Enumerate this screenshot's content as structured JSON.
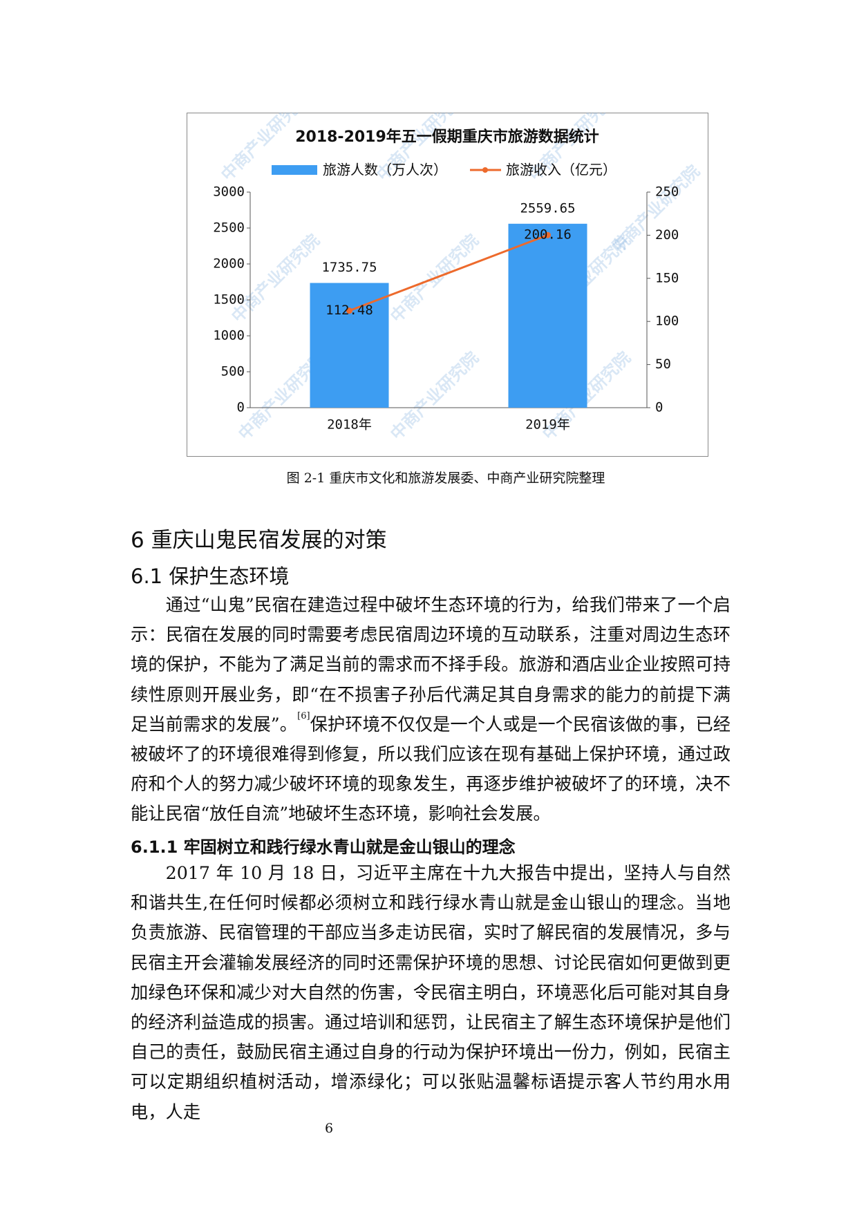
{
  "chart_data": {
    "type": "bar",
    "title": "2018-2019年五一假期重庆市旅游数据统计",
    "categories": [
      "2018年",
      "2019年"
    ],
    "series": [
      {
        "name": "旅游人数（万人次）",
        "type": "bar",
        "color": "#3d9df2",
        "values": [
          1735.75,
          2559.65
        ]
      },
      {
        "name": "旅游收入（亿元）",
        "type": "line",
        "axis": "y2",
        "color": "#ed6a2c",
        "values": [
          112.48,
          200.16
        ]
      }
    ],
    "ylim": [
      0,
      3000
    ],
    "yticks": [
      0,
      500,
      1000,
      1500,
      2000,
      2500,
      3000
    ],
    "y2lim": [
      0,
      250
    ],
    "y2ticks": [
      0,
      50,
      100,
      150,
      200,
      250
    ],
    "grid": false,
    "legend": "top",
    "watermark": "中商产业研究院"
  },
  "caption": "图 2-1  重庆市文化和旅游发展委、中商产业研究院整理",
  "heading": "6 重庆山鬼民宿发展的对策",
  "section": {
    "heading": "6.1 保护生态环境",
    "paragraph": {
      "before": "通过“山鬼”民宿在建造过程中破坏生态环境的行为，给我们带来了一个启示：民宿在发展的同时需要考虑民宿周边环境的互动联系，注重对周边生态环境的保护，不能为了满足当前的需求而不择手段。旅游和酒店业企业按照可持续性原则开展业务，即“在不损害子孙后代满足其自身需求的能力的前提下满足当前需求的发展”。",
      "citation": "[6]",
      "after": "保护环境不仅仅是一个人或是一个民宿该做的事，已经被破坏了的环境很难得到修复，所以我们应该在现有基础上保护环境，通过政府和个人的努力减少破坏环境的现象发生，再逐步维护被破坏了的环境，决不能让民宿“放任自流”地破坏生态环境，影响社会发展。"
    }
  },
  "subsection": {
    "heading": "6.1.1 牢固树立和践行绿水青山就是金山银山的理念",
    "paragraph": "2017 年 10 月 18 日，习近平主席在十九大报告中提出，坚持人与自然和谐共生,在任何时候都必须树立和践行绿水青山就是金山银山的理念。当地负责旅游、民宿管理的干部应当多走访民宿，实时了解民宿的发展情况，多与民宿主开会灌输发展经济的同时还需保护环境的思想、讨论民宿如何更做到更加绿色环保和减少对大自然的伤害，令民宿主明白，环境恶化后可能对其自身的经济利益造成的损害。通过培训和惩罚，让民宿主了解生态环境保护是他们自己的责任，鼓励民宿主通过自身的行动为保护环境出一份力，例如，民宿主可以定期组织植树活动，增添绿化；可以张贴温馨标语提示客人节约用水用电，人走"
  },
  "page_number": "6"
}
